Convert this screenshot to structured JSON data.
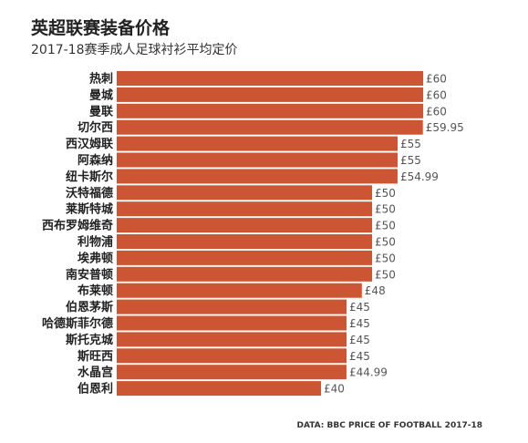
{
  "colors": {
    "bar": "#CC5533"
  },
  "chart_data": {
    "type": "bar",
    "orientation": "horizontal",
    "title": "英超联赛装备价格",
    "subtitle": "2017-18赛季成人足球衬衫平均定价",
    "source": "DATA: BBC PRICE OF FOOTBALL 2017-18",
    "categories": [
      "热刺",
      "曼城",
      "曼联",
      "切尔西",
      "西汉姆联",
      "阿森纳",
      "纽卡斯尔",
      "沃特福德",
      "莱斯特城",
      "西布罗姆维奇",
      "利物浦",
      "埃弗顿",
      "南安普顿",
      "布莱顿",
      "伯恩茅斯",
      "哈德斯菲尔德",
      "斯托克城",
      "斯旺西",
      "水晶宫",
      "伯恩利"
    ],
    "values": [
      60,
      60,
      60,
      59.95,
      55,
      55,
      54.99,
      50,
      50,
      50,
      50,
      50,
      50,
      48,
      45,
      45,
      45,
      45,
      44.99,
      40
    ],
    "value_labels": [
      "£60",
      "£60",
      "£60",
      "£59.95",
      "£55",
      "£55",
      "£54.99",
      "£50",
      "£50",
      "£50",
      "£50",
      "£50",
      "£50",
      "£48",
      "£45",
      "£45",
      "£45",
      "£45",
      "£44.99",
      "£40"
    ],
    "xlim": [
      0,
      60
    ],
    "grid": false,
    "legend": "none"
  }
}
